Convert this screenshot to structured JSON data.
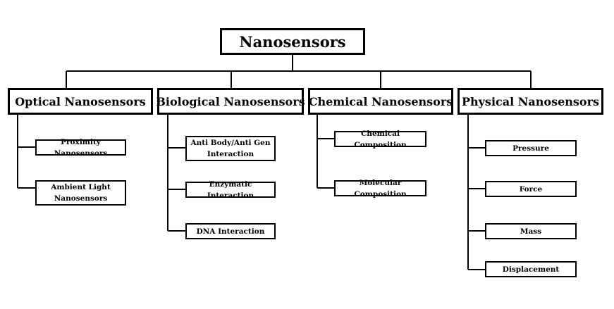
{
  "root": {
    "label": "Nanosensors"
  },
  "categories": [
    {
      "label": "Optical Nanosensors",
      "items": [
        "Proximity Nanosensors",
        "Ambient Light Nanosensors"
      ]
    },
    {
      "label": "Biological Nanosensors",
      "items": [
        "Anti Body/Anti Gen Interaction",
        "Enzymatic Interaction",
        "DNA Interaction"
      ]
    },
    {
      "label": "Chemical Nanosensors",
      "items": [
        "Chemical Composition",
        "Molecular Composition"
      ]
    },
    {
      "label": "Physical Nanosensors",
      "items": [
        "Pressure",
        "Force",
        "Mass",
        "Displacement"
      ]
    }
  ]
}
